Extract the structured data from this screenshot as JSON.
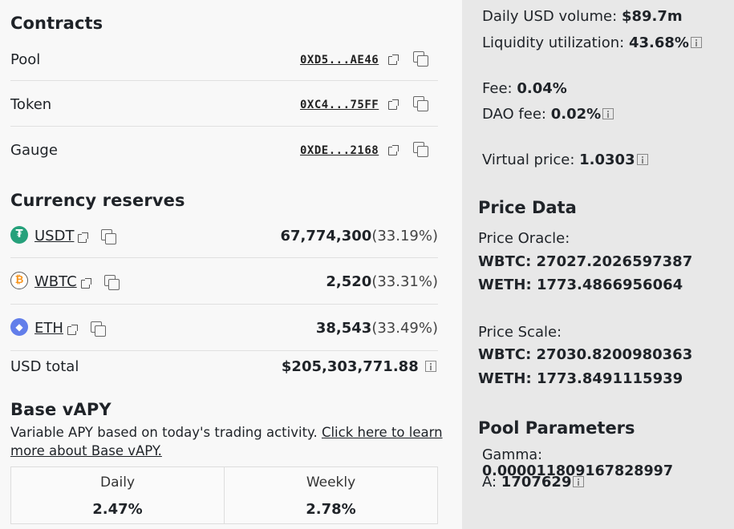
{
  "contracts": {
    "title": "Contracts",
    "items": [
      {
        "label": "Pool",
        "address": "0XD5...AE46"
      },
      {
        "label": "Token",
        "address": "0XC4...75FF"
      },
      {
        "label": "Gauge",
        "address": "0XDE...2168"
      }
    ]
  },
  "reserves": {
    "title": "Currency reserves",
    "coins": [
      {
        "symbol": "USDT",
        "amount": "67,774,300",
        "pct": "(33.19%)",
        "color": "#26a17b",
        "icon": "tether-icon"
      },
      {
        "symbol": "WBTC",
        "amount": "2,520",
        "pct": "(33.31%)",
        "color": "#f7931a",
        "icon": "wbtc-icon"
      },
      {
        "symbol": "ETH",
        "amount": "38,543",
        "pct": "(33.49%)",
        "color": "#627eea",
        "icon": "eth-icon"
      }
    ],
    "usd_total_label": "USD total",
    "usd_total": "$205,303,771.88"
  },
  "base_vapy": {
    "title": "Base vAPY",
    "description": "Variable APY based on today's trading activity.",
    "link": "Click here to learn more about Base vAPY.",
    "daily_label": "Daily",
    "daily": "2.47%",
    "weekly_label": "Weekly",
    "weekly": "2.78%"
  },
  "stats": {
    "daily_volume_label": "Daily USD volume:",
    "daily_volume": "$89.7m",
    "liquidity_label": "Liquidity utilization:",
    "liquidity": "43.68%",
    "fee_label": "Fee:",
    "fee": "0.04%",
    "dao_fee_label": "DAO fee:",
    "dao_fee": "0.02%",
    "virtual_price_label": "Virtual price:",
    "virtual_price": "1.0303"
  },
  "price_data": {
    "title": "Price Data",
    "oracle_label": "Price Oracle:",
    "oracle_wbtc": "WBTC: 27027.2026597387",
    "oracle_weth": "WETH: 1773.4866956064",
    "scale_label": "Price Scale:",
    "scale_wbtc": "WBTC: 27030.8200980363",
    "scale_weth": "WETH: 1773.8491115939"
  },
  "pool_params": {
    "title": "Pool Parameters",
    "gamma_label": "Gamma:",
    "gamma": "0.000011809167828997",
    "a_label": "A:",
    "a": "1707629"
  }
}
